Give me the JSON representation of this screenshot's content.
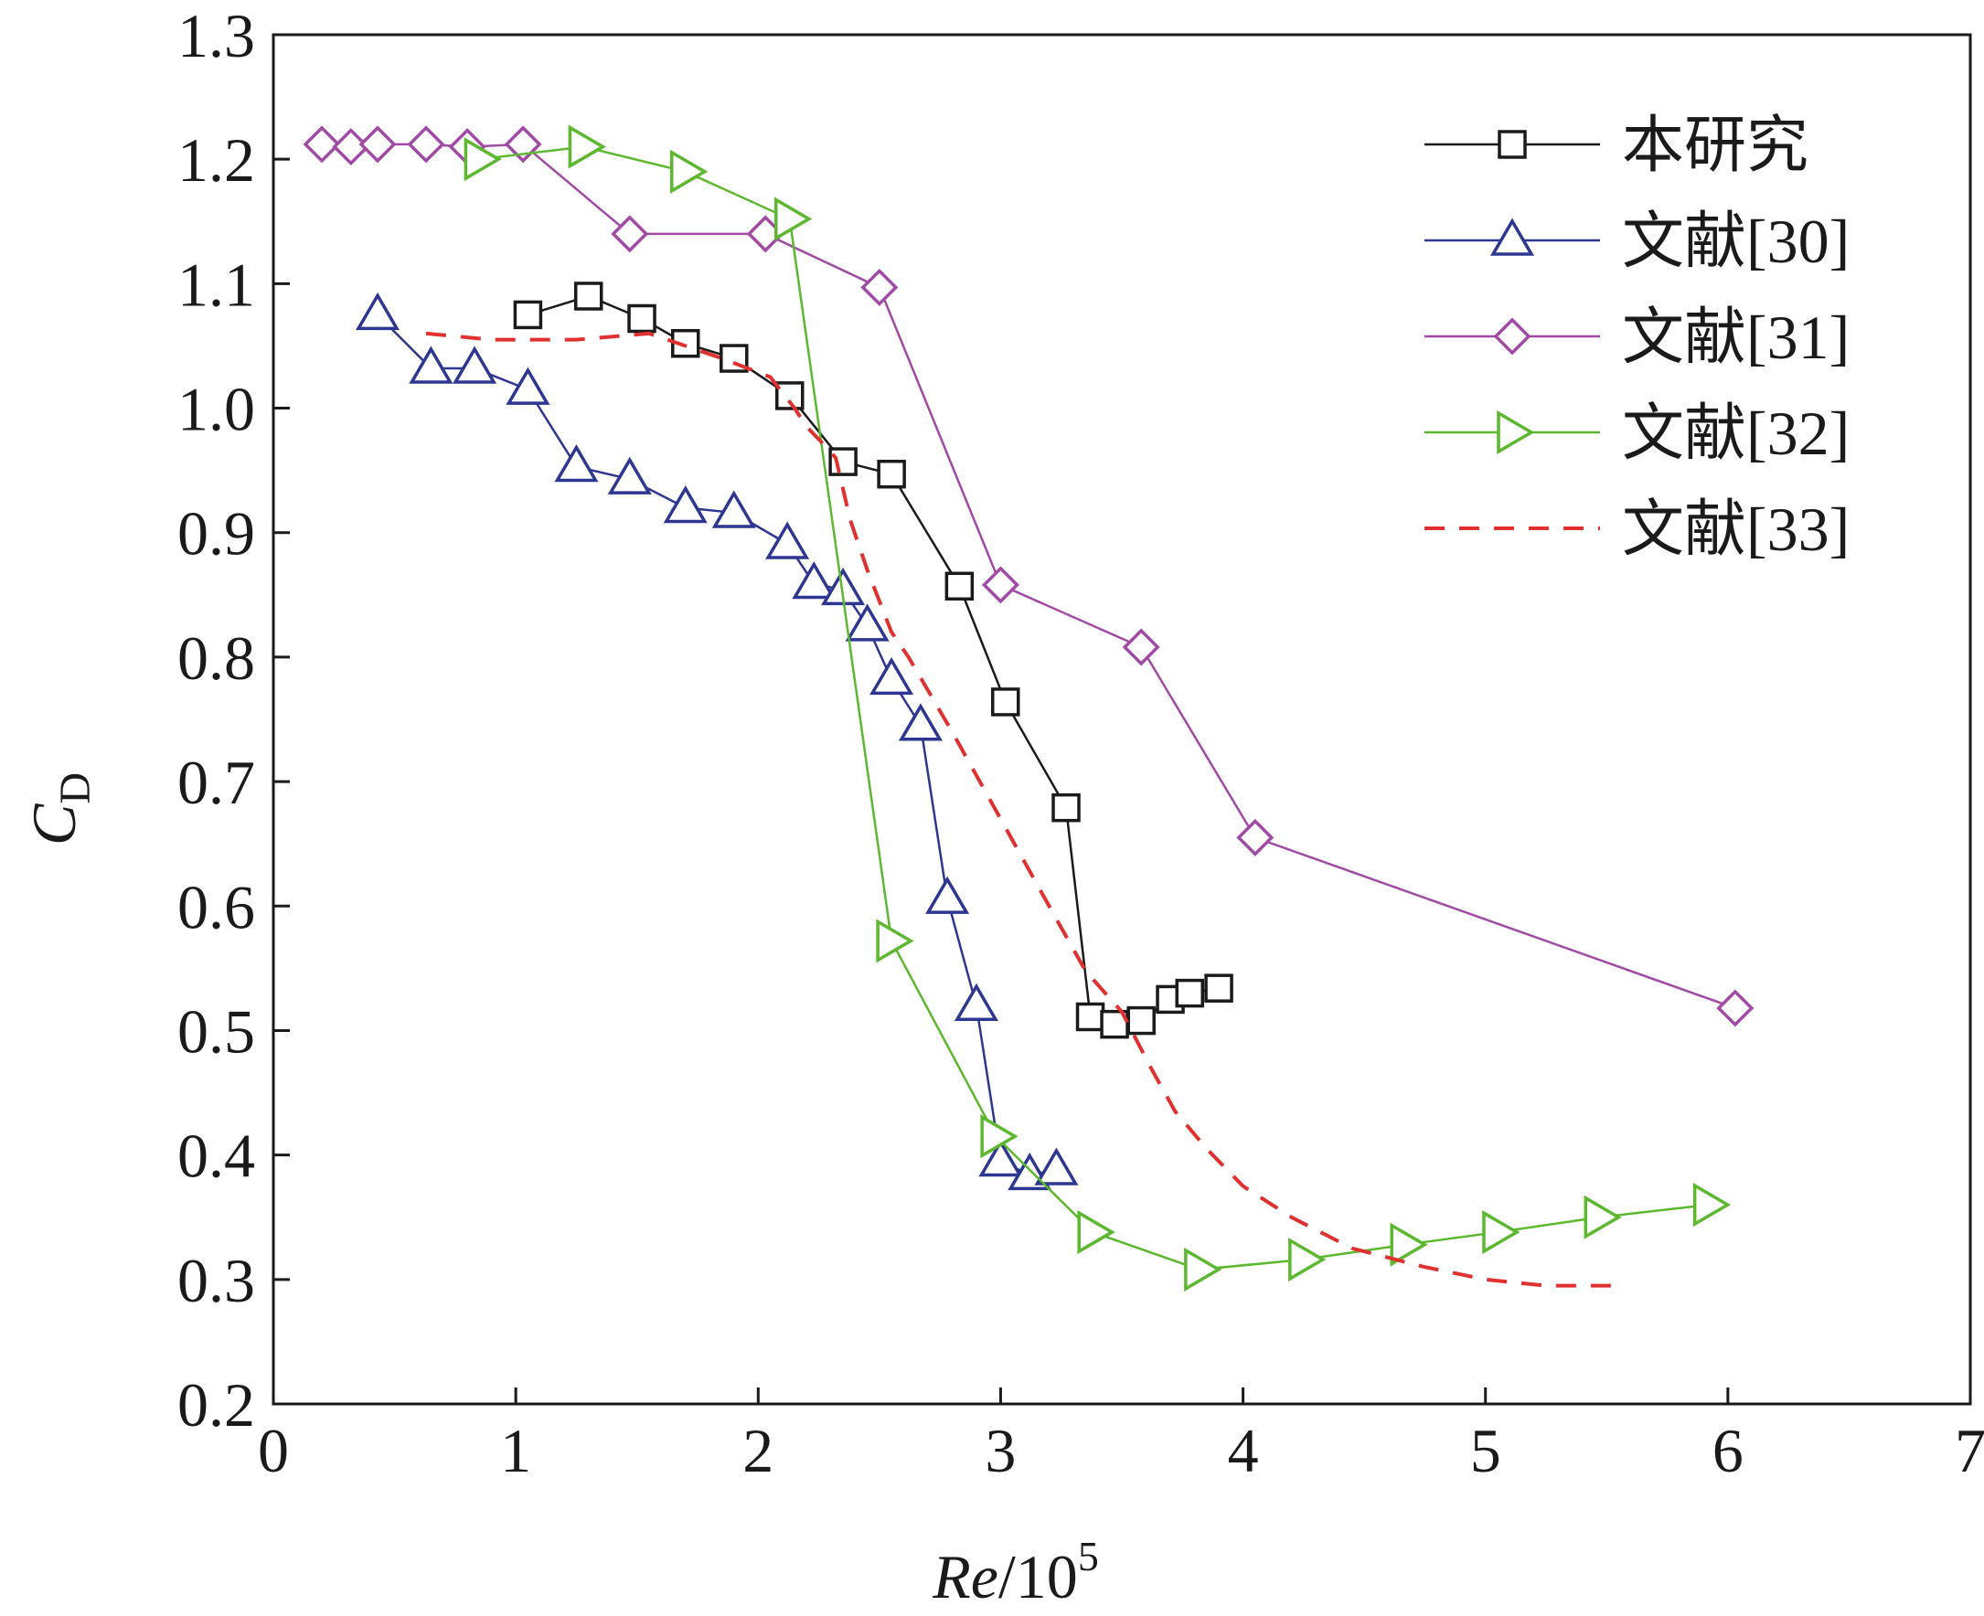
{
  "chart_data": {
    "type": "line",
    "xlabel": {
      "italic": "Re",
      "rest": "/10",
      "sup": "5"
    },
    "ylabel": {
      "main": "C",
      "sub": "D",
      "accent": "‾"
    },
    "xlim": [
      0,
      7
    ],
    "ylim": [
      0.2,
      1.3
    ],
    "xticks": [
      "0",
      "1",
      "2",
      "3",
      "4",
      "5",
      "6",
      "7"
    ],
    "yticks": [
      "0.2",
      "0.3",
      "0.4",
      "0.5",
      "0.6",
      "0.7",
      "0.8",
      "0.9",
      "1.0",
      "1.1",
      "1.2",
      "1.3"
    ],
    "legend_position": "top-right",
    "grid": false,
    "series": [
      {
        "name": "本研究",
        "marker": "square",
        "color": "#1a1a1a",
        "linestyle": "solid",
        "x": [
          1.05,
          1.3,
          1.52,
          1.7,
          1.9,
          2.13,
          2.35,
          2.55,
          2.83,
          3.02,
          3.27,
          3.37,
          3.47,
          3.58,
          3.7,
          3.78,
          3.9
        ],
        "y": [
          1.075,
          1.09,
          1.072,
          1.052,
          1.04,
          1.01,
          0.957,
          0.947,
          0.857,
          0.764,
          0.679,
          0.511,
          0.505,
          0.508,
          0.525,
          0.53,
          0.534
        ]
      },
      {
        "name": "文献[30]",
        "marker": "triangle-up",
        "color": "#2d3691",
        "linestyle": "solid",
        "x": [
          0.43,
          0.65,
          0.83,
          1.05,
          1.25,
          1.47,
          1.7,
          1.9,
          2.12,
          2.23,
          2.35,
          2.45,
          2.55,
          2.67,
          2.78,
          2.9,
          3.0,
          3.12,
          3.23
        ],
        "y": [
          1.075,
          1.032,
          1.032,
          1.015,
          0.953,
          0.943,
          0.92,
          0.916,
          0.891,
          0.859,
          0.854,
          0.825,
          0.782,
          0.745,
          0.606,
          0.52,
          0.395,
          0.384,
          0.388
        ]
      },
      {
        "name": "文献[31]",
        "marker": "diamond",
        "color": "#a04aa6",
        "linestyle": "solid",
        "x": [
          0.2,
          0.32,
          0.43,
          0.63,
          0.8,
          1.03,
          1.47,
          2.03,
          2.5,
          3.0,
          3.58,
          4.05,
          6.03
        ],
        "y": [
          1.212,
          1.21,
          1.212,
          1.212,
          1.21,
          1.212,
          1.14,
          1.14,
          1.097,
          0.858,
          0.808,
          0.655,
          0.518
        ]
      },
      {
        "name": "文献[32]",
        "marker": "triangle-right",
        "color": "#5cb82e",
        "linestyle": "solid",
        "x": [
          0.85,
          1.28,
          1.7,
          2.13,
          2.55,
          2.98,
          3.38,
          3.82,
          4.25,
          4.67,
          5.05,
          5.47,
          5.92
        ],
        "y": [
          1.2,
          1.21,
          1.19,
          1.152,
          0.572,
          0.415,
          0.338,
          0.308,
          0.316,
          0.328,
          0.338,
          0.35,
          0.36
        ]
      },
      {
        "name": "文献[33]",
        "marker": "none",
        "color": "#e03030",
        "linestyle": "dashed",
        "x": [
          0.63,
          0.9,
          1.25,
          1.55,
          1.85,
          2.05,
          2.15,
          2.2,
          2.25,
          2.32,
          2.38,
          2.45,
          2.55,
          2.62,
          2.68,
          2.8,
          3.0,
          3.2,
          3.35,
          3.5,
          3.62,
          3.72,
          3.85,
          4.0,
          4.2,
          4.45,
          4.75,
          5.0,
          5.25,
          5.55
        ],
        "y": [
          1.06,
          1.055,
          1.055,
          1.06,
          1.04,
          1.025,
          1.0,
          0.985,
          0.975,
          0.96,
          0.91,
          0.87,
          0.82,
          0.8,
          0.78,
          0.74,
          0.67,
          0.6,
          0.548,
          0.515,
          0.47,
          0.435,
          0.405,
          0.375,
          0.35,
          0.325,
          0.31,
          0.3,
          0.295,
          0.295
        ]
      }
    ]
  }
}
